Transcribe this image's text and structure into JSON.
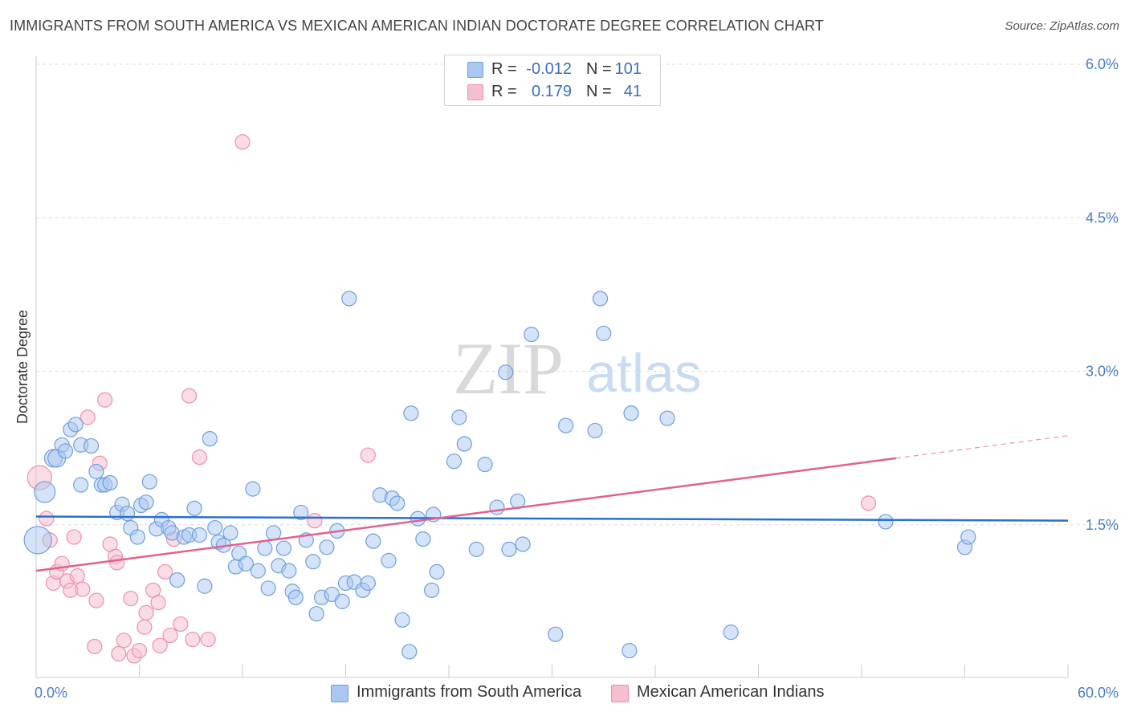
{
  "title": "IMMIGRANTS FROM SOUTH AMERICA VS MEXICAN AMERICAN INDIAN DOCTORATE DEGREE CORRELATION CHART",
  "source": "Source: ZipAtlas.com",
  "watermark": {
    "zip": "ZIP",
    "atlas": "atlas"
  },
  "legend": {
    "rows": [
      {
        "r_label": "R =",
        "r_value": "-0.012",
        "n_label": "N =",
        "n_value": "101"
      },
      {
        "r_label": "R =",
        "r_value": "0.179",
        "n_label": "N =",
        "n_value": "41"
      }
    ]
  },
  "bottom_legend": [
    "Immigrants from South America",
    "Mexican American Indians"
  ],
  "colors": {
    "blue_fill": "#a9c7f0",
    "blue_stroke": "#6f9fdf",
    "blue_line": "#2c6fd0",
    "pink_fill": "#f6bfd0",
    "pink_stroke": "#ec8fad",
    "pink_line": "#e0628e",
    "grid": "#dcdcdc",
    "tick_text": "#4a7cc7"
  },
  "chart_data": {
    "type": "scatter",
    "title": "IMMIGRANTS FROM SOUTH AMERICA VS MEXICAN AMERICAN INDIAN DOCTORATE DEGREE CORRELATION CHART",
    "xlabel": "",
    "ylabel": "Doctorate Degree",
    "xlim": [
      0,
      60
    ],
    "ylim": [
      0,
      6.2
    ],
    "x_tick_labels": [
      "0.0%",
      "60.0%"
    ],
    "y_ticks": [
      1.5,
      3.0,
      4.5,
      6.0
    ],
    "y_tick_labels": [
      "1.5%",
      "3.0%",
      "4.5%",
      "6.0%"
    ],
    "grid": "horizontal dashed",
    "legend_position": "top-center",
    "series": [
      {
        "name": "Immigrants from South America",
        "r": -0.012,
        "n": 101,
        "trend": {
          "x": [
            0,
            60
          ],
          "y": [
            1.58,
            1.54
          ]
        },
        "points": [
          [
            0.1,
            1.35
          ],
          [
            0.5,
            1.82
          ],
          [
            1.0,
            2.15
          ],
          [
            1.2,
            2.15
          ],
          [
            1.5,
            2.28
          ],
          [
            1.7,
            2.22
          ],
          [
            2.0,
            2.43
          ],
          [
            2.3,
            2.48
          ],
          [
            2.6,
            1.89
          ],
          [
            2.6,
            2.28
          ],
          [
            3.2,
            2.27
          ],
          [
            3.5,
            2.02
          ],
          [
            3.8,
            1.89
          ],
          [
            4.0,
            1.89
          ],
          [
            4.3,
            1.91
          ],
          [
            4.7,
            1.62
          ],
          [
            5.0,
            1.7
          ],
          [
            5.3,
            1.61
          ],
          [
            5.5,
            1.47
          ],
          [
            5.9,
            1.38
          ],
          [
            6.1,
            1.69
          ],
          [
            6.4,
            1.72
          ],
          [
            6.6,
            1.92
          ],
          [
            7.0,
            1.46
          ],
          [
            7.3,
            1.55
          ],
          [
            7.7,
            1.47
          ],
          [
            7.9,
            1.42
          ],
          [
            8.2,
            0.96
          ],
          [
            8.6,
            1.38
          ],
          [
            8.9,
            1.4
          ],
          [
            9.2,
            1.66
          ],
          [
            9.5,
            1.4
          ],
          [
            9.8,
            0.9
          ],
          [
            10.1,
            2.34
          ],
          [
            10.4,
            1.47
          ],
          [
            10.6,
            1.33
          ],
          [
            10.9,
            1.3
          ],
          [
            11.3,
            1.42
          ],
          [
            11.6,
            1.09
          ],
          [
            11.8,
            1.22
          ],
          [
            12.2,
            1.12
          ],
          [
            12.6,
            1.85
          ],
          [
            12.9,
            1.05
          ],
          [
            13.3,
            1.27
          ],
          [
            13.5,
            0.88
          ],
          [
            13.8,
            1.42
          ],
          [
            14.1,
            1.1
          ],
          [
            14.4,
            1.27
          ],
          [
            14.7,
            1.05
          ],
          [
            14.9,
            0.85
          ],
          [
            15.1,
            0.79
          ],
          [
            15.4,
            1.62
          ],
          [
            15.7,
            1.35
          ],
          [
            16.1,
            1.14
          ],
          [
            16.3,
            0.63
          ],
          [
            16.6,
            0.79
          ],
          [
            16.9,
            1.28
          ],
          [
            17.2,
            0.82
          ],
          [
            17.5,
            1.44
          ],
          [
            17.8,
            0.75
          ],
          [
            18.0,
            0.93
          ],
          [
            18.2,
            3.71
          ],
          [
            18.5,
            0.94
          ],
          [
            19.0,
            0.86
          ],
          [
            19.3,
            0.93
          ],
          [
            19.6,
            1.34
          ],
          [
            20.0,
            1.79
          ],
          [
            20.5,
            1.15
          ],
          [
            20.7,
            1.76
          ],
          [
            21.0,
            1.71
          ],
          [
            21.3,
            0.57
          ],
          [
            21.7,
            0.26
          ],
          [
            21.8,
            2.59
          ],
          [
            22.2,
            1.56
          ],
          [
            22.5,
            1.36
          ],
          [
            23.0,
            0.86
          ],
          [
            23.1,
            1.6
          ],
          [
            23.3,
            1.04
          ],
          [
            24.3,
            2.12
          ],
          [
            24.6,
            2.55
          ],
          [
            24.9,
            2.29
          ],
          [
            25.6,
            1.26
          ],
          [
            26.1,
            2.09
          ],
          [
            26.8,
            1.67
          ],
          [
            27.3,
            2.99
          ],
          [
            27.5,
            1.26
          ],
          [
            28.0,
            1.73
          ],
          [
            28.3,
            1.31
          ],
          [
            28.8,
            3.36
          ],
          [
            30.2,
            0.43
          ],
          [
            30.8,
            2.47
          ],
          [
            32.5,
            2.42
          ],
          [
            32.8,
            3.71
          ],
          [
            33.0,
            3.37
          ],
          [
            34.5,
            0.27
          ],
          [
            34.6,
            2.59
          ],
          [
            36.7,
            2.54
          ],
          [
            40.4,
            0.45
          ],
          [
            49.4,
            1.53
          ],
          [
            54.0,
            1.28
          ],
          [
            54.2,
            1.38
          ]
        ]
      },
      {
        "name": "Mexican American Indians",
        "r": 0.179,
        "n": 41,
        "trend": {
          "x": [
            0,
            50
          ],
          "y": [
            1.05,
            2.15
          ],
          "dashed_to": {
            "x": 60,
            "y": 2.37
          }
        },
        "points": [
          [
            0.2,
            1.96
          ],
          [
            0.6,
            1.56
          ],
          [
            0.8,
            1.35
          ],
          [
            1.0,
            0.93
          ],
          [
            1.2,
            1.04
          ],
          [
            1.5,
            1.12
          ],
          [
            1.8,
            0.95
          ],
          [
            2.0,
            0.86
          ],
          [
            2.2,
            1.38
          ],
          [
            2.4,
            1.0
          ],
          [
            2.7,
            0.87
          ],
          [
            3.0,
            2.55
          ],
          [
            3.4,
            0.31
          ],
          [
            3.5,
            0.76
          ],
          [
            3.7,
            2.1
          ],
          [
            4.0,
            2.72
          ],
          [
            4.3,
            1.31
          ],
          [
            4.6,
            1.19
          ],
          [
            4.7,
            1.13
          ],
          [
            4.8,
            0.24
          ],
          [
            5.1,
            0.37
          ],
          [
            5.5,
            0.78
          ],
          [
            5.7,
            0.22
          ],
          [
            6.0,
            0.27
          ],
          [
            6.3,
            0.5
          ],
          [
            6.4,
            0.64
          ],
          [
            6.8,
            0.86
          ],
          [
            7.1,
            0.74
          ],
          [
            7.2,
            0.32
          ],
          [
            7.5,
            1.04
          ],
          [
            7.8,
            0.42
          ],
          [
            8.0,
            1.36
          ],
          [
            8.4,
            0.53
          ],
          [
            8.9,
            2.76
          ],
          [
            9.1,
            0.38
          ],
          [
            9.5,
            2.16
          ],
          [
            10.0,
            0.38
          ],
          [
            12.0,
            5.24
          ],
          [
            16.2,
            1.54
          ],
          [
            19.3,
            2.18
          ],
          [
            48.4,
            1.71
          ]
        ]
      }
    ]
  }
}
